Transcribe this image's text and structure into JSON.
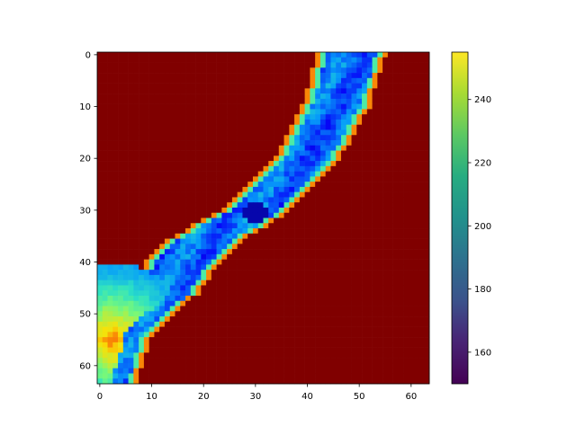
{
  "chart_data": {
    "type": "heatmap",
    "title": "",
    "xlabel": "",
    "ylabel": "",
    "grid_size": [
      64,
      64
    ],
    "x_ticks": [
      0,
      10,
      20,
      30,
      40,
      50,
      60
    ],
    "y_ticks": [
      0,
      10,
      20,
      30,
      40,
      50,
      60
    ],
    "xlim": [
      -0.5,
      63.5
    ],
    "ylim": [
      63.5,
      -0.5
    ],
    "colorbar": {
      "colormap": "viridis",
      "range": [
        150,
        255
      ],
      "ticks": [
        160,
        180,
        200,
        220,
        240
      ]
    },
    "overlay": {
      "colormap": "jet",
      "alpha": 0.6,
      "background_color": "#800000"
    },
    "band_centerline": [
      [
        0,
        48.5
      ],
      [
        10,
        45.5
      ],
      [
        20,
        40
      ],
      [
        30,
        30
      ],
      [
        33,
        25
      ],
      [
        36,
        20
      ],
      [
        40,
        16
      ],
      [
        46,
        12
      ],
      [
        50,
        7
      ],
      [
        54,
        3
      ],
      [
        64,
        0
      ]
    ],
    "band_halfwidth": [
      [
        0,
        4.5
      ],
      [
        16,
        4.2
      ],
      [
        28,
        4
      ],
      [
        34,
        5
      ],
      [
        42,
        5
      ],
      [
        64,
        4.8
      ]
    ],
    "warm_region_center": [
      2.5,
      55
    ],
    "warm_region_radius": 15,
    "dark_spot": [
      30,
      30.5
    ]
  }
}
